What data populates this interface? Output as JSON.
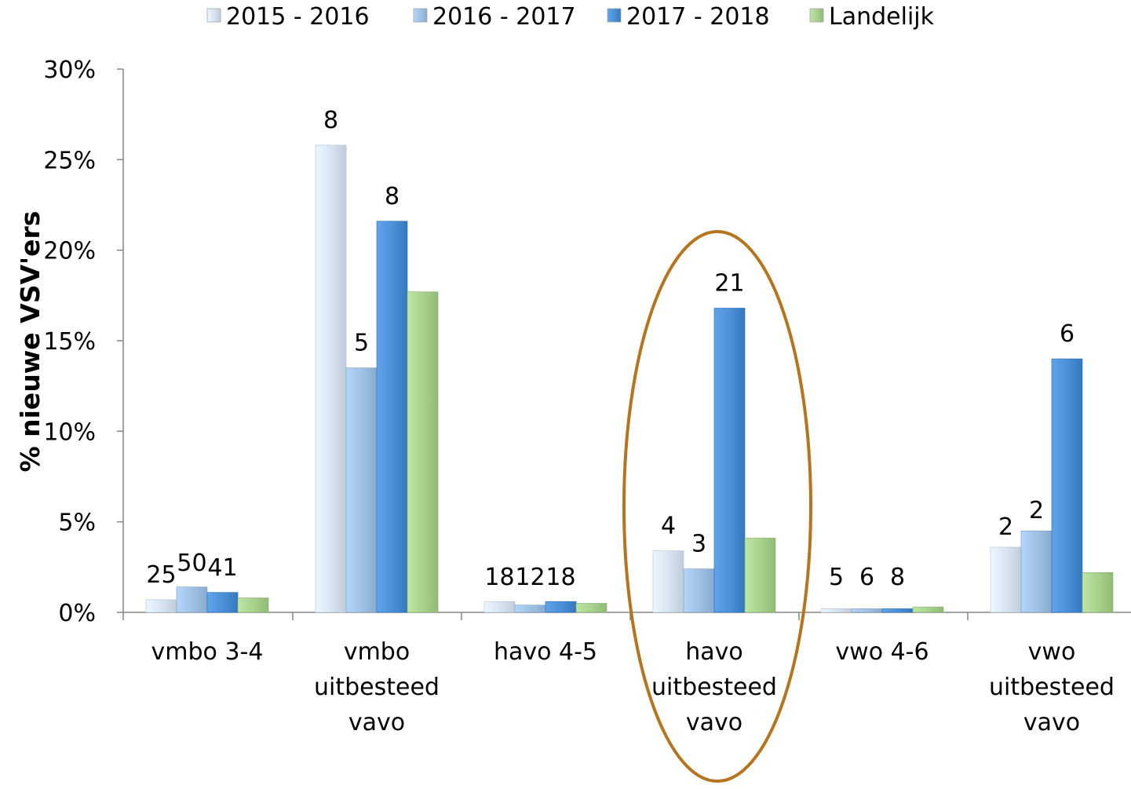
{
  "chart_data": {
    "type": "bar",
    "title": "",
    "xlabel": "",
    "ylabel": "% nieuwe VSV'ers",
    "ylim": [
      0,
      30
    ],
    "y_ticks": [
      "0%",
      "5%",
      "10%",
      "15%",
      "20%",
      "25%",
      "30%"
    ],
    "y_tick_values": [
      0,
      5,
      10,
      15,
      20,
      25,
      30
    ],
    "grid": false,
    "legend_position": "top-center",
    "categories": [
      [
        "vmbo 3-4"
      ],
      [
        "vmbo",
        "uitbesteed",
        "vavo"
      ],
      [
        "havo 4-5"
      ],
      [
        "havo",
        "uitbesteed",
        "vavo"
      ],
      [
        "vwo 4-6"
      ],
      [
        "vwo",
        "uitbesteed",
        "vavo"
      ]
    ],
    "series": [
      {
        "name": "2015 - 2016",
        "color": "#d6e2f0",
        "values": [
          0.7,
          25.8,
          0.6,
          3.4,
          0.2,
          3.6
        ],
        "labels": [
          "25",
          "8",
          "18",
          "4",
          "5",
          "2"
        ]
      },
      {
        "name": "2016 - 2017",
        "color": "#9dc0e4",
        "values": [
          1.4,
          13.5,
          0.4,
          2.4,
          0.2,
          4.5
        ],
        "labels": [
          "50",
          "5",
          "12",
          "3",
          "6",
          "2"
        ]
      },
      {
        "name": "2017 - 2018",
        "color": "#4a8ed6",
        "values": [
          1.1,
          21.6,
          0.6,
          16.8,
          0.2,
          14.0
        ],
        "labels": [
          "41",
          "8",
          "18",
          "21",
          "8",
          "6"
        ]
      },
      {
        "name": "Landelijk",
        "color": "#a8d08d",
        "values": [
          0.8,
          17.7,
          0.5,
          4.1,
          0.3,
          2.2
        ],
        "labels": []
      }
    ],
    "highlight": {
      "category_index": 3,
      "shape": "ellipse",
      "color": "#b5741e"
    }
  }
}
